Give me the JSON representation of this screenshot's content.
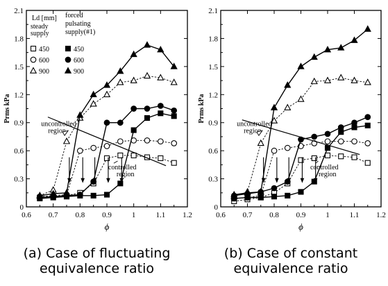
{
  "chart_data": [
    {
      "type": "line",
      "panel": "a",
      "xlabel": "ϕ",
      "ylabel": "Prms kPa",
      "xlim": [
        0.6,
        1.2
      ],
      "ylim": [
        0,
        2.1
      ],
      "xticks": [
        "0.6",
        "0.7",
        "0.8",
        "0.9",
        "1",
        "1.1",
        "1.2"
      ],
      "yticks": [
        "0",
        "0.3",
        "0.6",
        "0.9",
        "1.2",
        "1.5",
        "1.8",
        "2.1"
      ],
      "legend": {
        "header_ld": "Ld [mm]",
        "col1": [
          "steady",
          "supply"
        ],
        "col2": [
          "forced",
          "pulsating",
          "supply(#1)"
        ],
        "values": [
          "450",
          "600",
          "900"
        ]
      },
      "annotations": {
        "uncontrolled": [
          "uncontrolled",
          "region"
        ],
        "controlled": [
          "controlled",
          "region"
        ]
      },
      "series": [
        {
          "name": "450",
          "marker": "square",
          "filled": false,
          "dashed": true,
          "x": [
            0.65,
            0.7,
            0.75,
            0.8,
            0.85,
            0.9,
            0.95,
            1.0,
            1.05,
            1.1,
            1.15
          ],
          "y": [
            0.1,
            0.11,
            0.12,
            0.15,
            0.25,
            0.52,
            0.55,
            0.55,
            0.53,
            0.52,
            0.47
          ]
        },
        {
          "name": "600",
          "marker": "circle",
          "filled": false,
          "dashed": true,
          "x": [
            0.65,
            0.7,
            0.75,
            0.8,
            0.85,
            0.9,
            0.95,
            1.0,
            1.05,
            1.1,
            1.15
          ],
          "y": [
            0.11,
            0.12,
            0.13,
            0.6,
            0.63,
            0.65,
            0.7,
            0.71,
            0.71,
            0.7,
            0.68
          ]
        },
        {
          "name": "900",
          "marker": "triangle",
          "filled": false,
          "dashed": true,
          "x": [
            0.65,
            0.7,
            0.75,
            0.8,
            0.85,
            0.9,
            0.95,
            1.0,
            1.05,
            1.1,
            1.15
          ],
          "y": [
            0.12,
            0.18,
            0.7,
            0.95,
            1.1,
            1.2,
            1.33,
            1.35,
            1.4,
            1.38,
            1.33
          ]
        },
        {
          "name": "450",
          "marker": "square",
          "filled": true,
          "dashed": false,
          "x": [
            0.65,
            0.7,
            0.75,
            0.8,
            0.85,
            0.9,
            0.95,
            1.0,
            1.05,
            1.1,
            1.15
          ],
          "y": [
            0.09,
            0.1,
            0.11,
            0.12,
            0.12,
            0.13,
            0.25,
            0.82,
            0.95,
            1.0,
            0.97
          ]
        },
        {
          "name": "600",
          "marker": "circle",
          "filled": true,
          "dashed": false,
          "x": [
            0.65,
            0.7,
            0.75,
            0.8,
            0.85,
            0.9,
            0.95,
            1.0,
            1.05,
            1.1,
            1.15
          ],
          "y": [
            0.1,
            0.11,
            0.12,
            0.13,
            0.27,
            0.9,
            0.9,
            1.05,
            1.05,
            1.08,
            1.03
          ]
        },
        {
          "name": "900",
          "marker": "triangle",
          "filled": true,
          "dashed": false,
          "x": [
            0.65,
            0.7,
            0.75,
            0.8,
            0.85,
            0.9,
            0.95,
            1.0,
            1.05,
            1.1,
            1.15
          ],
          "y": [
            0.12,
            0.14,
            0.15,
            0.98,
            1.2,
            1.3,
            1.45,
            1.63,
            1.73,
            1.68,
            1.5
          ]
        }
      ]
    },
    {
      "type": "line",
      "panel": "b",
      "xlabel": "ϕ",
      "ylabel": "Prms kPa",
      "xlim": [
        0.6,
        1.2
      ],
      "ylim": [
        0,
        2.1
      ],
      "xticks": [
        "0.6",
        "0.7",
        "0.8",
        "0.9",
        "1",
        "1.1",
        "1.2"
      ],
      "yticks": [
        "0",
        "0.3",
        "0.6",
        "0.9",
        "1.2",
        "1.5",
        "1.8",
        "2.1"
      ],
      "annotations": {
        "uncontrolled": [
          "uncontrolled",
          "region"
        ],
        "controlled": [
          "controlled",
          "region"
        ]
      },
      "series": [
        {
          "name": "450",
          "marker": "square",
          "filled": false,
          "dashed": true,
          "x": [
            0.65,
            0.7,
            0.75,
            0.8,
            0.85,
            0.9,
            0.95,
            1.0,
            1.05,
            1.1,
            1.15
          ],
          "y": [
            0.06,
            0.08,
            0.1,
            0.15,
            0.25,
            0.5,
            0.52,
            0.55,
            0.54,
            0.53,
            0.47
          ]
        },
        {
          "name": "600",
          "marker": "circle",
          "filled": false,
          "dashed": true,
          "x": [
            0.65,
            0.7,
            0.75,
            0.8,
            0.85,
            0.9,
            0.95,
            1.0,
            1.05,
            1.1,
            1.15
          ],
          "y": [
            0.09,
            0.1,
            0.12,
            0.6,
            0.63,
            0.65,
            0.68,
            0.7,
            0.7,
            0.7,
            0.68
          ]
        },
        {
          "name": "900",
          "marker": "triangle",
          "filled": false,
          "dashed": true,
          "x": [
            0.65,
            0.7,
            0.75,
            0.8,
            0.85,
            0.9,
            0.95,
            1.0,
            1.05,
            1.1,
            1.15
          ],
          "y": [
            0.11,
            0.16,
            0.68,
            0.92,
            1.06,
            1.15,
            1.34,
            1.35,
            1.38,
            1.35,
            1.33
          ]
        },
        {
          "name": "450",
          "marker": "square",
          "filled": true,
          "dashed": false,
          "x": [
            0.65,
            0.7,
            0.75,
            0.8,
            0.85,
            0.9,
            0.95,
            1.0,
            1.05,
            1.1,
            1.15
          ],
          "y": [
            0.09,
            0.1,
            0.1,
            0.11,
            0.12,
            0.16,
            0.27,
            0.63,
            0.8,
            0.85,
            0.87
          ]
        },
        {
          "name": "600",
          "marker": "circle",
          "filled": true,
          "dashed": false,
          "x": [
            0.65,
            0.7,
            0.75,
            0.8,
            0.85,
            0.9,
            0.95,
            1.0,
            1.05,
            1.1,
            1.15
          ],
          "y": [
            0.12,
            0.14,
            0.16,
            0.2,
            0.27,
            0.72,
            0.75,
            0.78,
            0.85,
            0.9,
            0.96
          ]
        },
        {
          "name": "900",
          "marker": "triangle",
          "filled": true,
          "dashed": false,
          "x": [
            0.65,
            0.7,
            0.75,
            0.8,
            0.85,
            0.9,
            0.95,
            1.0,
            1.05,
            1.1,
            1.15
          ],
          "y": [
            0.13,
            0.15,
            0.16,
            1.06,
            1.3,
            1.5,
            1.6,
            1.68,
            1.7,
            1.78,
            1.9
          ]
        }
      ]
    }
  ],
  "captions": {
    "a": [
      "(a) Case of fluctuating",
      "equivalence ratio"
    ],
    "b": [
      "(b) Case of constant",
      "equivalence ratio"
    ]
  }
}
